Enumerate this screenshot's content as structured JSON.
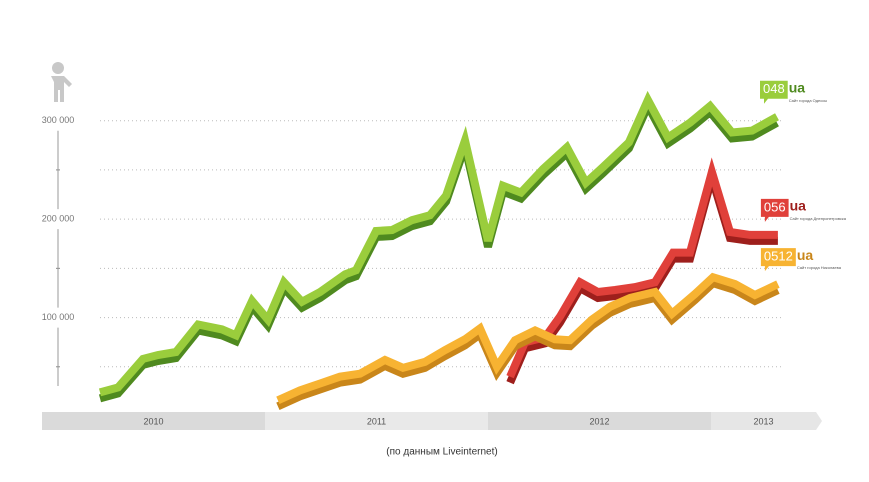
{
  "chart_data": {
    "type": "line",
    "yticks": [
      {
        "value": 100000,
        "label": "100 000"
      },
      {
        "value": 200000,
        "label": "200 000"
      },
      {
        "value": 300000,
        "label": "300 000"
      }
    ],
    "minor_yticks": [
      50000,
      150000,
      250000
    ],
    "ylim": [
      0,
      320000
    ],
    "xlim": [
      2010,
      2013.5
    ],
    "xticks": [
      2010,
      2011,
      2012,
      2013
    ],
    "grid": true,
    "footnote": "(по данным Liveinternet)",
    "series": [
      {
        "name": "048",
        "domain": "ua",
        "caption": "Сайт города Одессы",
        "color": "#9acd3c",
        "shade": "#4f8a1f",
        "x": [
          2010.26,
          2010.341,
          2010.453,
          2010.52,
          2010.601,
          2010.7,
          2010.807,
          2010.87,
          2010.942,
          2011.013,
          2011.085,
          2011.166,
          2011.247,
          2011.359,
          2011.408,
          2011.498,
          2011.57,
          2011.659,
          2011.74,
          2011.812,
          2011.897,
          2012.0,
          2012.067,
          2012.148,
          2012.247,
          2012.354,
          2012.439,
          2012.516,
          2012.632,
          2012.717,
          2012.807,
          2012.906,
          2012.996,
          2013.094,
          2013.184,
          2013.296
        ],
        "values": [
          26000,
          31000,
          60000,
          64000,
          67000,
          95000,
          90000,
          84000,
          119000,
          100000,
          138000,
          118000,
          128000,
          146000,
          150000,
          190000,
          191000,
          201000,
          206000,
          226000,
          282000,
          180000,
          236000,
          229000,
          253000,
          275000,
          239000,
          255000,
          280000,
          323000,
          285000,
          300000,
          317000,
          290000,
          292000,
          306000
        ]
      },
      {
        "name": "056",
        "domain": "ua",
        "caption": "Сайт города Днепропетровска",
        "color": "#e0403a",
        "shade": "#9e1f1c",
        "x": [
          2012.099,
          2012.166,
          2012.256,
          2012.323,
          2012.413,
          2012.493,
          2012.57,
          2012.659,
          2012.749,
          2012.83,
          2012.906,
          2013.004,
          2013.085,
          2013.175,
          2013.3
        ],
        "values": [
          42000,
          77000,
          82000,
          103000,
          138000,
          128000,
          130000,
          133000,
          138000,
          168000,
          168000,
          250000,
          189000,
          186000,
          186000
        ]
      },
      {
        "name": "0512",
        "domain": "ua",
        "caption": "Сайт города Николаева",
        "color": "#f7b332",
        "shade": "#c9861a",
        "x": [
          2011.058,
          2011.157,
          2011.247,
          2011.336,
          2011.426,
          2011.538,
          2011.619,
          2011.717,
          2011.807,
          2011.897,
          2011.964,
          2012.04,
          2012.121,
          2012.211,
          2012.3,
          2012.368,
          2012.466,
          2012.547,
          2012.637,
          2012.749,
          2012.825,
          2012.928,
          2013.009,
          2013.108,
          2013.197,
          2013.3
        ],
        "values": [
          18000,
          28000,
          35000,
          42000,
          45000,
          59000,
          51000,
          57000,
          69000,
          80000,
          91000,
          52000,
          79000,
          89000,
          80000,
          79000,
          100000,
          113000,
          122000,
          128000,
          106000,
          126000,
          143000,
          136000,
          125000,
          136000
        ]
      }
    ]
  }
}
